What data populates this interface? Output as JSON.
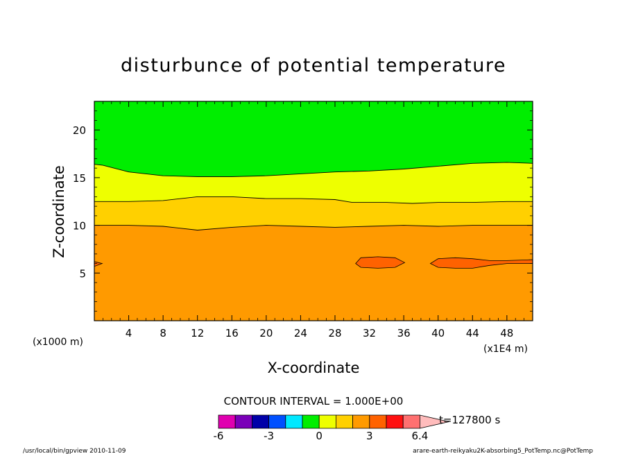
{
  "chart_data": {
    "type": "contour",
    "title": "disturbunce of potential temperature",
    "xlabel": "X-coordinate",
    "ylabel": "Z-coordinate",
    "x_unit_left": "(x1000 m)",
    "x_unit_right": "(x1E4 m)",
    "xlim": [
      0,
      51
    ],
    "ylim": [
      0,
      23
    ],
    "x_ticks": [
      4,
      8,
      12,
      16,
      20,
      24,
      28,
      32,
      36,
      40,
      44,
      48
    ],
    "y_ticks": [
      5,
      10,
      15,
      20
    ],
    "contour_interval_text": "CONTOUR INTERVAL = 1.000E+00",
    "time_label": "t=127800 s",
    "colorbar": {
      "levels": [
        -6,
        -5,
        -4,
        -3,
        -2,
        -1,
        0,
        1,
        2,
        3,
        4,
        5,
        6,
        6.4
      ],
      "colors": [
        "#e000b0",
        "#7a00b8",
        "#0000a8",
        "#0050ff",
        "#00e8ff",
        "#00ee00",
        "#eeff00",
        "#ffd000",
        "#ff9a00",
        "#ff6200",
        "#ff1010",
        "#ff7070",
        "#ffbcbc"
      ],
      "tick_labels": [
        "-6",
        "-3",
        "0",
        "3",
        "6.4"
      ],
      "tick_values": [
        -6,
        -3,
        0,
        3,
        6.4
      ]
    },
    "bands": [
      {
        "from": 0,
        "to": 1,
        "color": "#ff9a00"
      },
      {
        "from": 1,
        "to": 2,
        "color": "#ffd000"
      },
      {
        "from": 2,
        "to": 3,
        "color": "#eeff00"
      },
      {
        "from": 3,
        "to": 4,
        "color": "#00ee00"
      }
    ],
    "contours": [
      {
        "level": 1,
        "z": [
          [
            0,
            10.0
          ],
          [
            4,
            10.0
          ],
          [
            8,
            9.9
          ],
          [
            12,
            9.5
          ],
          [
            16,
            9.8
          ],
          [
            20,
            10.0
          ],
          [
            24,
            9.9
          ],
          [
            28,
            9.8
          ],
          [
            32,
            9.9
          ],
          [
            36,
            10.0
          ],
          [
            40,
            9.9
          ],
          [
            44,
            10.0
          ],
          [
            48,
            10.0
          ],
          [
            51,
            10.0
          ]
        ]
      },
      {
        "level": 2,
        "z": [
          [
            0,
            12.5
          ],
          [
            4,
            12.5
          ],
          [
            8,
            12.6
          ],
          [
            12,
            13.0
          ],
          [
            16,
            13.0
          ],
          [
            20,
            12.8
          ],
          [
            24,
            12.8
          ],
          [
            28,
            12.7
          ],
          [
            30,
            12.4
          ],
          [
            34,
            12.4
          ],
          [
            37,
            12.3
          ],
          [
            40,
            12.4
          ],
          [
            44,
            12.4
          ],
          [
            48,
            12.5
          ],
          [
            51,
            12.5
          ]
        ]
      },
      {
        "level": 3,
        "z": [
          [
            0,
            16.4
          ],
          [
            1,
            16.3
          ],
          [
            4,
            15.6
          ],
          [
            8,
            15.2
          ],
          [
            12,
            15.1
          ],
          [
            16,
            15.1
          ],
          [
            20,
            15.2
          ],
          [
            24,
            15.4
          ],
          [
            28,
            15.6
          ],
          [
            32,
            15.7
          ],
          [
            36,
            15.9
          ],
          [
            40,
            16.2
          ],
          [
            44,
            16.5
          ],
          [
            48,
            16.6
          ],
          [
            51,
            16.5
          ]
        ]
      }
    ],
    "patches": [
      {
        "color": "#ff6200",
        "z": [
          [
            0,
            6.2
          ],
          [
            0.9,
            6.0
          ],
          [
            0,
            5.7
          ]
        ]
      },
      {
        "color": "#ff6200",
        "z": [
          [
            30.4,
            6.0
          ],
          [
            31,
            6.6
          ],
          [
            33,
            6.7
          ],
          [
            35,
            6.6
          ],
          [
            36.1,
            6.1
          ],
          [
            35,
            5.6
          ],
          [
            33,
            5.5
          ],
          [
            31,
            5.6
          ]
        ]
      },
      {
        "color": "#ff6200",
        "z": [
          [
            39.1,
            6.0
          ],
          [
            40,
            6.5
          ],
          [
            42,
            6.6
          ],
          [
            44,
            6.5
          ],
          [
            46,
            6.3
          ],
          [
            48,
            6.3
          ],
          [
            51,
            6.4
          ],
          [
            51,
            6.0
          ],
          [
            48,
            6.0
          ],
          [
            46,
            5.8
          ],
          [
            44,
            5.5
          ],
          [
            42,
            5.5
          ],
          [
            40,
            5.6
          ]
        ]
      }
    ]
  },
  "footer": {
    "left": "/usr/local/bin/gpview   2010-11-09",
    "right": "arare-earth-reikyaku2K-absorbing5_PotTemp.nc@PotTemp"
  }
}
